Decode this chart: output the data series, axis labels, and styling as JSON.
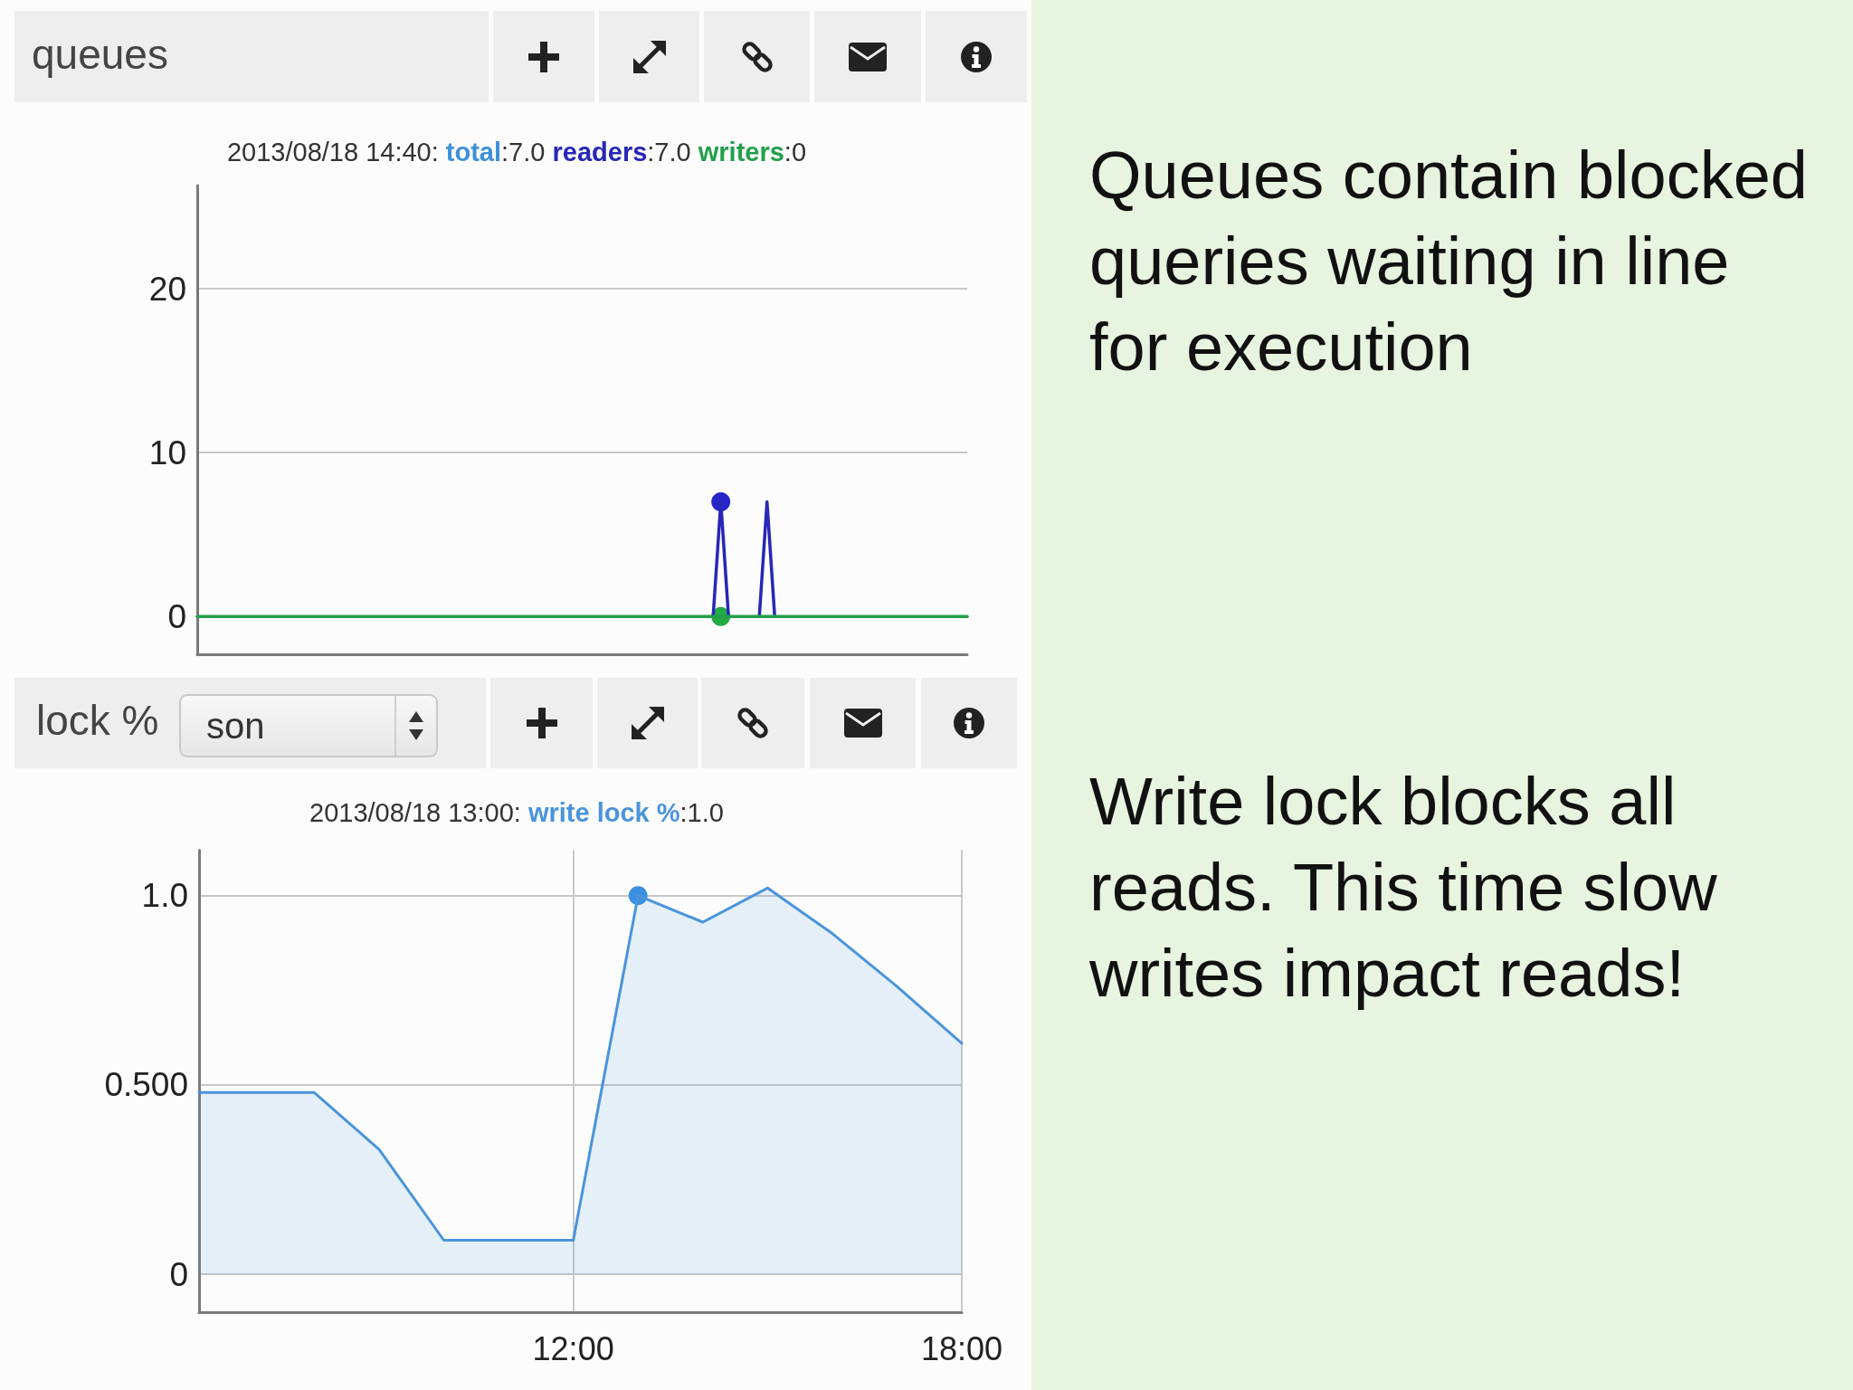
{
  "chart_data": [
    {
      "type": "line",
      "title": "queues",
      "subtitle": "2013/08/18 14:40:",
      "annotations": [
        ":7.0",
        ":7.0",
        ":0"
      ],
      "ylim": [
        -2.3,
        26.3
      ],
      "yticks": [
        0,
        10,
        20
      ],
      "grid": "y",
      "tick_labels": "y",
      "categories": [
        null,
        null,
        null,
        null,
        null,
        null,
        null,
        null,
        null,
        null,
        null,
        null,
        null,
        null,
        null,
        null,
        null,
        null,
        null,
        null,
        null,
        null,
        null,
        null,
        null,
        null,
        null,
        null,
        null,
        null,
        null,
        null,
        null,
        null,
        null,
        null,
        null,
        null,
        null,
        null,
        null,
        null,
        null,
        null,
        null,
        null,
        null,
        null,
        null,
        null,
        null,
        null,
        null,
        null,
        null,
        null,
        null,
        null,
        null,
        null,
        null,
        null,
        null,
        null,
        null,
        null,
        null,
        null,
        null,
        null,
        null,
        null,
        null,
        null,
        null,
        null,
        null,
        null,
        null,
        null,
        null,
        null,
        null,
        null,
        null,
        null,
        null,
        null,
        null,
        null,
        null,
        null,
        null,
        null,
        null,
        null,
        null,
        null,
        null,
        null,
        null
      ],
      "series": [
        {
          "name": "total",
          "color": "#3d8fd9",
          "values": [
            null,
            null,
            null,
            null,
            null,
            null,
            null,
            null,
            null,
            null,
            null,
            null,
            null,
            null,
            null,
            null,
            null,
            null,
            null,
            null,
            null,
            null,
            null,
            null,
            null,
            null,
            null,
            null,
            null,
            null,
            null,
            null,
            null,
            null,
            null,
            null,
            null,
            null,
            null,
            null,
            null,
            null,
            null,
            null,
            null,
            null,
            null,
            null,
            null,
            null,
            null,
            null,
            null,
            null,
            null,
            null,
            null,
            null,
            null,
            null,
            null,
            null,
            null,
            null,
            null,
            null,
            null,
            null,
            null,
            null,
            null,
            null,
            null,
            null,
            null,
            null,
            null,
            null,
            null,
            null,
            null,
            null,
            null,
            null,
            null,
            null,
            null,
            null,
            null,
            null,
            null,
            null,
            null,
            null,
            null,
            null,
            null,
            null,
            null,
            null,
            null
          ]
        },
        {
          "name": "readers",
          "color": "#2727b8",
          "values": [
            null,
            null,
            null,
            null,
            null,
            null,
            null,
            null,
            null,
            null,
            null,
            null,
            null,
            null,
            null,
            null,
            null,
            null,
            null,
            null,
            null,
            null,
            null,
            null,
            null,
            null,
            null,
            null,
            null,
            null,
            null,
            null,
            null,
            null,
            null,
            null,
            null,
            null,
            null,
            null,
            null,
            null,
            null,
            null,
            null,
            null,
            null,
            null,
            null,
            null,
            null,
            null,
            null,
            null,
            null,
            null,
            null,
            null,
            null,
            null,
            null,
            null,
            null,
            null,
            null,
            null,
            null,
            0,
            7,
            0,
            null,
            null,
            null,
            0,
            7,
            0,
            null,
            null,
            null,
            null,
            null,
            null,
            null,
            null,
            null,
            null,
            null,
            null,
            null,
            null,
            null,
            null,
            null,
            null,
            null,
            null,
            null,
            null,
            null,
            null,
            null
          ]
        },
        {
          "name": "writers",
          "color": "#23a04a",
          "values": [
            0,
            0,
            0,
            0,
            0,
            0,
            0,
            0,
            0,
            0,
            0,
            0,
            0,
            0,
            0,
            0,
            0,
            0,
            0,
            0,
            0,
            0,
            0,
            0,
            0,
            0,
            0,
            0,
            0,
            0,
            0,
            0,
            0,
            0,
            0,
            0,
            0,
            0,
            0,
            0,
            0,
            0,
            0,
            0,
            0,
            0,
            0,
            0,
            0,
            0,
            0,
            0,
            0,
            0,
            0,
            0,
            0,
            0,
            0,
            0,
            0,
            0,
            0,
            0,
            0,
            0,
            0,
            0,
            0,
            0,
            0,
            0,
            0,
            0,
            0,
            0,
            0,
            0,
            0,
            0,
            0,
            0,
            0,
            0,
            0,
            0,
            0,
            0,
            0,
            0,
            0,
            0,
            0,
            0,
            0,
            0,
            0,
            0,
            0,
            0,
            0
          ]
        },
        {
          "type": "scatter",
          "color": "#2525c8",
          "values": [
            null,
            null,
            null,
            null,
            null,
            null,
            null,
            null,
            null,
            null,
            null,
            null,
            null,
            null,
            null,
            null,
            null,
            null,
            null,
            null,
            null,
            null,
            null,
            null,
            null,
            null,
            null,
            null,
            null,
            null,
            null,
            null,
            null,
            null,
            null,
            null,
            null,
            null,
            null,
            null,
            null,
            null,
            null,
            null,
            null,
            null,
            null,
            null,
            null,
            null,
            null,
            null,
            null,
            null,
            null,
            null,
            null,
            null,
            null,
            null,
            null,
            null,
            null,
            null,
            null,
            null,
            null,
            null,
            7,
            null,
            null,
            null,
            null,
            null,
            null,
            null,
            null,
            null,
            null,
            null,
            null,
            null,
            null,
            null,
            null,
            null,
            null,
            null,
            null,
            null,
            null,
            null,
            null,
            null,
            null,
            null,
            null,
            null,
            null,
            null,
            null
          ]
        },
        {
          "type": "scatter",
          "color": "#22aa44",
          "values": [
            null,
            null,
            null,
            null,
            null,
            null,
            null,
            null,
            null,
            null,
            null,
            null,
            null,
            null,
            null,
            null,
            null,
            null,
            null,
            null,
            null,
            null,
            null,
            null,
            null,
            null,
            null,
            null,
            null,
            null,
            null,
            null,
            null,
            null,
            null,
            null,
            null,
            null,
            null,
            null,
            null,
            null,
            null,
            null,
            null,
            null,
            null,
            null,
            null,
            null,
            null,
            null,
            null,
            null,
            null,
            null,
            null,
            null,
            null,
            null,
            null,
            null,
            null,
            null,
            null,
            null,
            null,
            null,
            0,
            null,
            null,
            null,
            null,
            null,
            null,
            null,
            null,
            null,
            null,
            null,
            null,
            null,
            null,
            null,
            null,
            null,
            null,
            null,
            null,
            null,
            null,
            null,
            null,
            null,
            null,
            null,
            null,
            null,
            null,
            null,
            null
          ]
        }
      ]
    },
    {
      "type": "area",
      "title": "lock %",
      "subtitle": "2013/08/18 13:00:",
      "annotations": [
        ":1.0",
        "son"
      ],
      "xlim": [
        6.22,
        18
      ],
      "xticks": [
        {
          "value": 12,
          "label": "12:00"
        },
        {
          "value": 18,
          "label": "18:00"
        }
      ],
      "ylim": [
        -0.1,
        1.12
      ],
      "yticks": [
        0,
        {
          "value": 0.5,
          "label": "0.500"
        },
        {
          "value": 1,
          "label": "1.0"
        }
      ],
      "grid": true,
      "series": [
        {
          "name": "write lock %",
          "color": "#4a94dc",
          "x": [
            6.22,
            7,
            8,
            9,
            10,
            11,
            12,
            13,
            14,
            15,
            16,
            17,
            18
          ],
          "values": [
            0.48,
            0.48,
            0.48,
            0.33,
            0.09,
            0.09,
            0.09,
            1.0,
            0.93,
            1.02,
            0.9,
            0.76,
            0.61
          ]
        },
        {
          "type": "scatter",
          "color": "#3a8fe0",
          "x": [
            13
          ],
          "values": [
            1.0
          ]
        }
      ]
    },
    {
      "type": "other",
      "annotations": [
        "Queues contain blocked queries waiting in line for execution",
        "Write lock blocks all reads. This time slow writes impact reads!"
      ]
    }
  ]
}
